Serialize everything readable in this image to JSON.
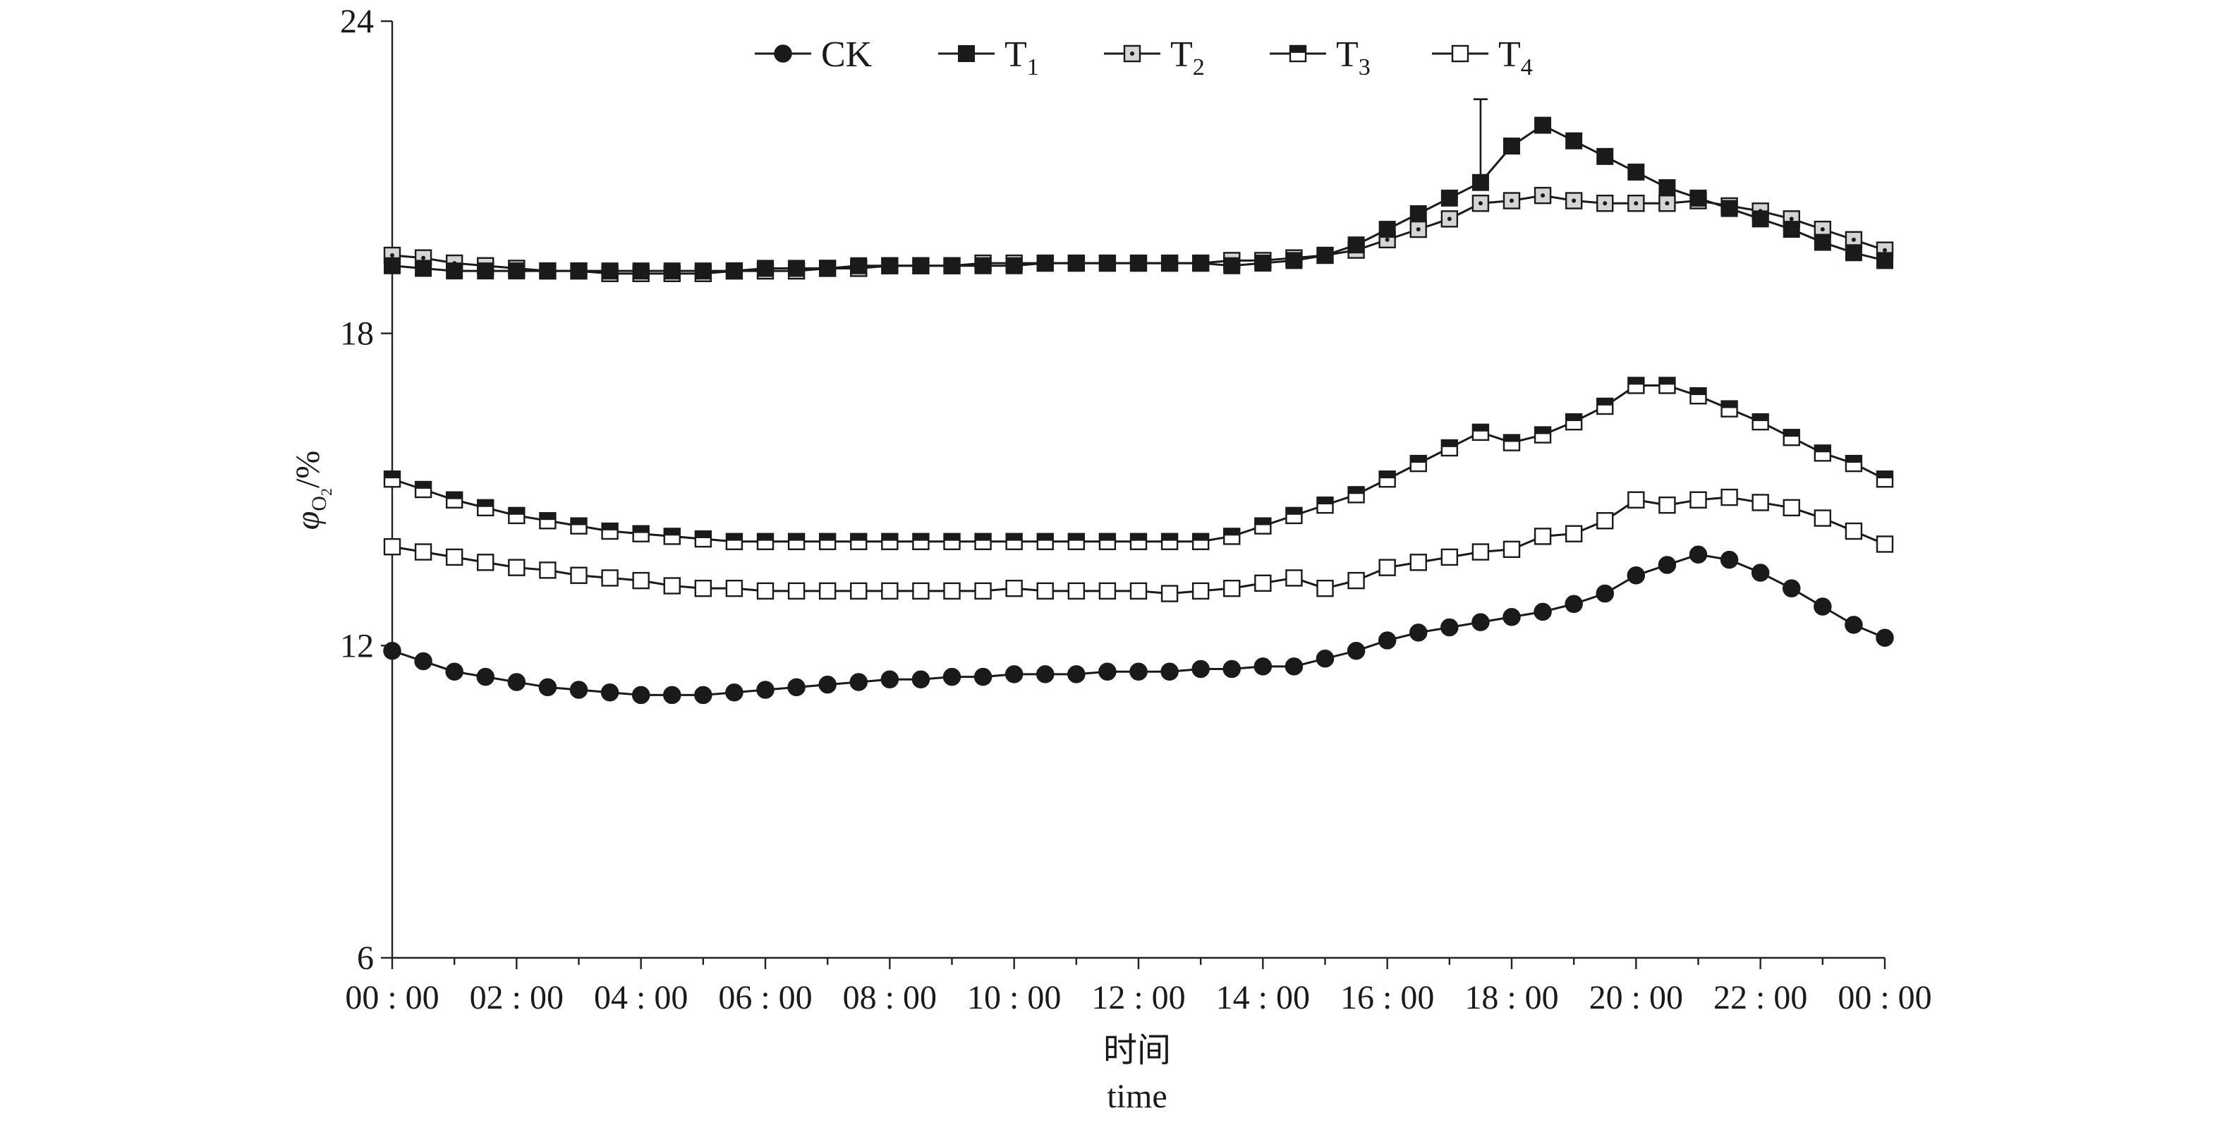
{
  "chart_data": {
    "type": "line",
    "xlabel": "时间",
    "xlabel_en": "time",
    "ylabel_main": "φ",
    "ylabel_sub": "O",
    "ylabel_subsub": "2",
    "ylabel_suffix": "/%",
    "ylim": [
      6,
      24
    ],
    "yticks": [
      6,
      12,
      18,
      24
    ],
    "x_tick_labels": [
      "00:00",
      "02:00",
      "04:00",
      "06:00",
      "08:00",
      "10:00",
      "12:00",
      "14:00",
      "16:00",
      "18:00",
      "20:00",
      "22:00",
      "00:00"
    ],
    "x_range_hours": [
      0,
      24
    ],
    "x_hours": [
      0,
      0.5,
      1,
      1.5,
      2,
      2.5,
      3,
      3.5,
      4,
      4.5,
      5,
      5.5,
      6,
      6.5,
      7,
      7.5,
      8,
      8.5,
      9,
      9.5,
      10,
      10.5,
      11,
      11.5,
      12,
      12.5,
      13,
      13.5,
      14,
      14.5,
      15,
      15.5,
      16,
      16.5,
      17,
      17.5,
      18,
      18.5,
      19,
      19.5,
      20,
      20.5,
      21,
      21.5,
      22,
      22.5,
      23,
      23.5,
      24
    ],
    "legend_position": "top",
    "series": [
      {
        "name": "CK",
        "name_base": "CK",
        "name_sub": "",
        "marker": "circle",
        "fill": "#1a1a1a",
        "values": [
          11.9,
          11.7,
          11.5,
          11.4,
          11.3,
          11.2,
          11.15,
          11.1,
          11.05,
          11.05,
          11.05,
          11.1,
          11.15,
          11.2,
          11.25,
          11.3,
          11.35,
          11.35,
          11.4,
          11.4,
          11.45,
          11.45,
          11.45,
          11.5,
          11.5,
          11.5,
          11.55,
          11.55,
          11.6,
          11.6,
          11.75,
          11.9,
          12.1,
          12.25,
          12.35,
          12.45,
          12.55,
          12.65,
          12.8,
          13.0,
          13.35,
          13.55,
          13.75,
          13.65,
          13.4,
          13.1,
          12.75,
          12.4,
          12.15
        ]
      },
      {
        "name": "T1",
        "name_base": "T",
        "name_sub": "1",
        "marker": "square",
        "fill": "#1a1a1a",
        "values": [
          19.3,
          19.25,
          19.2,
          19.2,
          19.2,
          19.2,
          19.2,
          19.2,
          19.2,
          19.2,
          19.2,
          19.2,
          19.25,
          19.25,
          19.25,
          19.3,
          19.3,
          19.3,
          19.3,
          19.3,
          19.3,
          19.35,
          19.35,
          19.35,
          19.35,
          19.35,
          19.35,
          19.3,
          19.35,
          19.4,
          19.5,
          19.7,
          20.0,
          20.3,
          20.6,
          20.9,
          21.6,
          22.0,
          21.7,
          21.4,
          21.1,
          20.8,
          20.6,
          20.4,
          20.2,
          20.0,
          19.75,
          19.55,
          19.4
        ]
      },
      {
        "name": "T2",
        "name_base": "T",
        "name_sub": "2",
        "marker": "square-dot",
        "fill": "#d4d4d4",
        "values": [
          19.5,
          19.45,
          19.35,
          19.3,
          19.25,
          19.2,
          19.2,
          19.15,
          19.15,
          19.15,
          19.15,
          19.2,
          19.2,
          19.2,
          19.25,
          19.25,
          19.3,
          19.3,
          19.3,
          19.35,
          19.35,
          19.35,
          19.35,
          19.35,
          19.35,
          19.35,
          19.35,
          19.4,
          19.4,
          19.45,
          19.5,
          19.6,
          19.8,
          20.0,
          20.2,
          20.5,
          20.55,
          20.65,
          20.55,
          20.5,
          20.5,
          20.5,
          20.55,
          20.45,
          20.35,
          20.2,
          20.0,
          19.8,
          19.6
        ]
      },
      {
        "name": "T3",
        "name_base": "T",
        "name_sub": "3",
        "marker": "square-hollow-dark",
        "fill": "#1a1a1a",
        "values": [
          15.2,
          15.0,
          14.8,
          14.65,
          14.5,
          14.4,
          14.3,
          14.2,
          14.15,
          14.1,
          14.05,
          14.0,
          14.0,
          14.0,
          14.0,
          14.0,
          14.0,
          14.0,
          14.0,
          14.0,
          14.0,
          14.0,
          14.0,
          14.0,
          14.0,
          14.0,
          14.0,
          14.1,
          14.3,
          14.5,
          14.7,
          14.9,
          15.2,
          15.5,
          15.8,
          16.1,
          15.9,
          16.05,
          16.3,
          16.6,
          17.0,
          17.0,
          16.8,
          16.55,
          16.3,
          16.0,
          15.7,
          15.5,
          15.2
        ]
      },
      {
        "name": "T4",
        "name_base": "T",
        "name_sub": "4",
        "marker": "square-hollow",
        "fill": "#ffffff",
        "values": [
          13.9,
          13.8,
          13.7,
          13.6,
          13.5,
          13.45,
          13.35,
          13.3,
          13.25,
          13.15,
          13.1,
          13.1,
          13.05,
          13.05,
          13.05,
          13.05,
          13.05,
          13.05,
          13.05,
          13.05,
          13.1,
          13.05,
          13.05,
          13.05,
          13.05,
          13.0,
          13.05,
          13.1,
          13.2,
          13.3,
          13.1,
          13.25,
          13.5,
          13.6,
          13.7,
          13.8,
          13.85,
          14.1,
          14.15,
          14.4,
          14.8,
          14.7,
          14.8,
          14.85,
          14.75,
          14.65,
          14.45,
          14.2,
          13.95
        ]
      }
    ],
    "error_bars": [
      {
        "series": "T1",
        "x_hour": 17.5,
        "low": 21.0,
        "high": 22.5
      }
    ]
  }
}
